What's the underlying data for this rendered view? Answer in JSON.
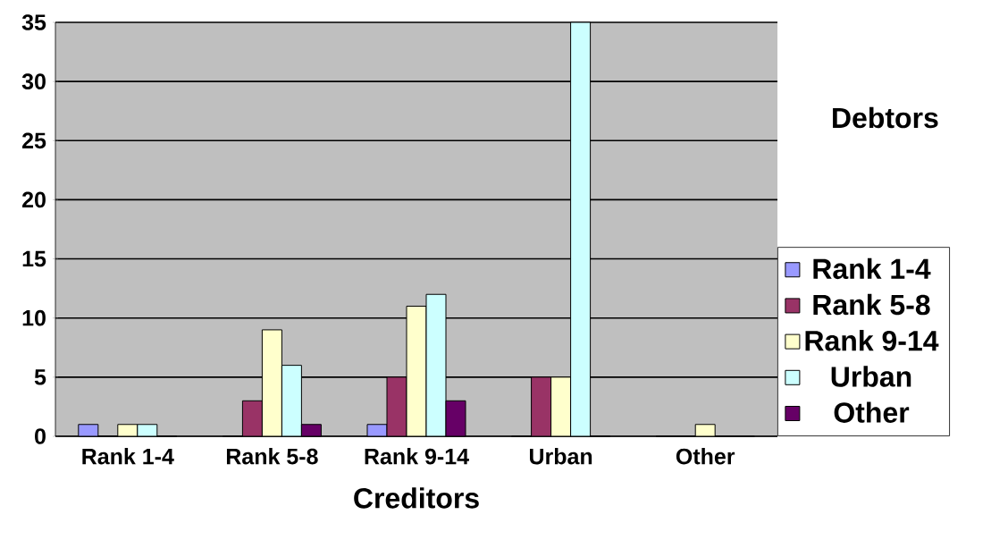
{
  "chart_data": {
    "type": "bar",
    "xlabel": "Creditors",
    "legend_title": "Debtors",
    "categories": [
      "Rank 1-4",
      "Rank 5-8",
      "Rank 9-14",
      "Urban",
      "Other"
    ],
    "series": [
      {
        "name": "Rank 1-4",
        "color": "#9999ff",
        "values": [
          1,
          0,
          1,
          0,
          0
        ]
      },
      {
        "name": "Rank 5-8",
        "color": "#993366",
        "values": [
          0,
          3,
          5,
          5,
          0
        ]
      },
      {
        "name": "Rank 9-14",
        "color": "#ffffcc",
        "values": [
          1,
          9,
          11,
          5,
          1
        ]
      },
      {
        "name": "Urban",
        "color": "#ccffff",
        "values": [
          1,
          6,
          12,
          35,
          0
        ]
      },
      {
        "name": "Other",
        "color": "#660066",
        "values": [
          0,
          1,
          3,
          0,
          0
        ]
      }
    ],
    "ylim": [
      0,
      35
    ],
    "yticks": [
      0,
      5,
      10,
      15,
      20,
      25,
      30,
      35
    ],
    "grid": "y",
    "legend": "right"
  }
}
